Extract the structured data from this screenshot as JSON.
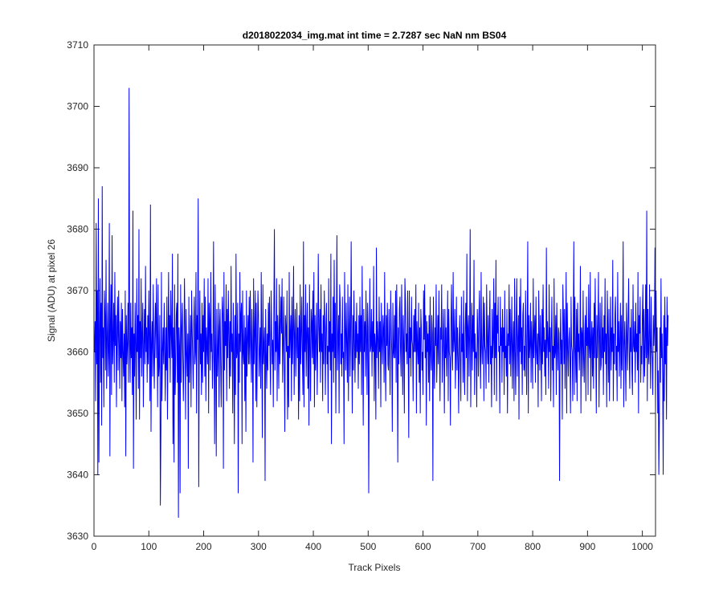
{
  "chart_data": {
    "type": "line",
    "title": "d2018022034_img.mat int time = 2.7287 sec  NaN nm BS04",
    "xlabel": "Track Pixels",
    "ylabel": "Signal (ADU) at pixel 26",
    "xlim": [
      0,
      1024
    ],
    "ylim": [
      3630,
      3710
    ],
    "x_ticks": [
      0,
      100,
      200,
      300,
      400,
      500,
      600,
      700,
      800,
      900,
      1000
    ],
    "y_ticks": [
      3630,
      3640,
      3650,
      3660,
      3670,
      3680,
      3690,
      3700,
      3710
    ],
    "x_tick_labels": [
      "0",
      "100",
      "200",
      "300",
      "400",
      "500",
      "600",
      "700",
      "800",
      "900",
      "1000"
    ],
    "y_tick_labels": [
      "3630",
      "3640",
      "3650",
      "3660",
      "3670",
      "3680",
      "3690",
      "3700",
      "3710"
    ],
    "grid": false,
    "box": true,
    "series": [
      {
        "color": "#0000ff",
        "x_start": 1,
        "x_step": 1,
        "values": [
          3660,
          3665,
          3652,
          3681,
          3658,
          3670,
          3640,
          3685,
          3642,
          3663,
          3672,
          3655,
          3668,
          3648,
          3687,
          3659,
          3664,
          3651,
          3670,
          3666,
          3657,
          3675,
          3654,
          3662,
          3668,
          3656,
          3660,
          3681,
          3643,
          3665,
          3671,
          3653,
          3679,
          3658,
          3662,
          3668,
          3655,
          3673,
          3661,
          3666,
          3651,
          3664,
          3669,
          3657,
          3670,
          3662,
          3654,
          3665,
          3659,
          3668,
          3652,
          3667,
          3660,
          3656,
          3663,
          3651,
          3670,
          3643,
          3666,
          3658,
          3661,
          3668,
          3655,
          3703,
          3662,
          3655,
          3668,
          3659,
          3664,
          3653,
          3683,
          3641,
          3663,
          3656,
          3668,
          3661,
          3649,
          3672,
          3660,
          3666,
          3654,
          3680,
          3649,
          3665,
          3659,
          3672,
          3656,
          3663,
          3668,
          3651,
          3661,
          3667,
          3658,
          3674,
          3660,
          3664,
          3655,
          3666,
          3658,
          3670,
          3662,
          3652,
          3684,
          3647,
          3661,
          3665,
          3656,
          3671,
          3660,
          3654,
          3663,
          3668,
          3659,
          3672,
          3664,
          3651,
          3671,
          3656,
          3658,
          3666,
          3635,
          3647,
          3673,
          3652,
          3660,
          3664,
          3658,
          3668,
          3660,
          3652,
          3664,
          3657,
          3669,
          3649,
          3661,
          3673,
          3659,
          3666,
          3655,
          3670,
          3663,
          3659,
          3676,
          3645,
          3664,
          3642,
          3671,
          3653,
          3658,
          3666,
          3668,
          3655,
          3676,
          3633,
          3664,
          3661,
          3637,
          3671,
          3655,
          3664,
          3668,
          3659,
          3652,
          3660,
          3672,
          3664,
          3649,
          3667,
          3660,
          3656,
          3663,
          3641,
          3669,
          3655,
          3660,
          3666,
          3651,
          3670,
          3664,
          3659,
          3654,
          3665,
          3669,
          3658,
          3660,
          3673,
          3650,
          3666,
          3662,
          3685,
          3638,
          3660,
          3670,
          3658,
          3663,
          3653,
          3668,
          3655,
          3666,
          3660,
          3672,
          3656,
          3669,
          3652,
          3664,
          3661,
          3658,
          3672,
          3650,
          3668,
          3665,
          3657,
          3673,
          3660,
          3663,
          3654,
          3660,
          3678,
          3659,
          3645,
          3671,
          3660,
          3643,
          3667,
          3656,
          3660,
          3668,
          3651,
          3664,
          3667,
          3658,
          3651,
          3663,
          3669,
          3666,
          3641,
          3673,
          3657,
          3665,
          3661,
          3671,
          3652,
          3667,
          3659,
          3670,
          3663,
          3654,
          3665,
          3656,
          3674,
          3660,
          3663,
          3650,
          3668,
          3660,
          3645,
          3666,
          3653,
          3676,
          3659,
          3660,
          3668,
          3637,
          3663,
          3655,
          3673,
          3660,
          3666,
          3668,
          3645,
          3670,
          3660,
          3658,
          3666,
          3652,
          3664,
          3647,
          3670,
          3656,
          3662,
          3666,
          3658,
          3669,
          3658,
          3670,
          3662,
          3655,
          3667,
          3661,
          3642,
          3672,
          3658,
          3663,
          3670,
          3652,
          3668,
          3651,
          3661,
          3670,
          3666,
          3656,
          3660,
          3664,
          3654,
          3673,
          3660,
          3646,
          3671,
          3658,
          3661,
          3664,
          3639,
          3667,
          3660,
          3654,
          3663,
          3657,
          3668,
          3661,
          3669,
          3659,
          3653,
          3670,
          3663,
          3658,
          3662,
          3651,
          3667,
          3680,
          3657,
          3665,
          3660,
          3672,
          3652,
          3666,
          3661,
          3654,
          3671,
          3658,
          3664,
          3669,
          3663,
          3672,
          3655,
          3661,
          3669,
          3658,
          3647,
          3666,
          3664,
          3660,
          3670,
          3649,
          3661,
          3651,
          3673,
          3659,
          3663,
          3666,
          3652,
          3669,
          3658,
          3664,
          3674,
          3653,
          3663,
          3667,
          3656,
          3661,
          3668,
          3659,
          3664,
          3649,
          3666,
          3652,
          3671,
          3658,
          3663,
          3669,
          3659,
          3653,
          3678,
          3651,
          3666,
          3660,
          3671,
          3656,
          3663,
          3668,
          3654,
          3664,
          3648,
          3671,
          3661,
          3652,
          3667,
          3665,
          3659,
          3670,
          3658,
          3673,
          3651,
          3666,
          3657,
          3662,
          3668,
          3653,
          3660,
          3676,
          3664,
          3660,
          3667,
          3655,
          3671,
          3660,
          3663,
          3652,
          3666,
          3658,
          3670,
          3664,
          3653,
          3664,
          3668,
          3658,
          3661,
          3650,
          3672,
          3660,
          3665,
          3657,
          3676,
          3645,
          3663,
          3660,
          3669,
          3655,
          3675,
          3659,
          3668,
          3650,
          3664,
          3679,
          3657,
          3662,
          3666,
          3650,
          3671,
          3668,
          3658,
          3663,
          3656,
          3669,
          3659,
          3660,
          3645,
          3673,
          3664,
          3657,
          3668,
          3661,
          3655,
          3671,
          3652,
          3664,
          3669,
          3656,
          3663,
          3678,
          3661,
          3650,
          3666,
          3657,
          3670,
          3662,
          3655,
          3665,
          3659,
          3668,
          3660,
          3663,
          3654,
          3666,
          3658,
          3669,
          3660,
          3666,
          3653,
          3674,
          3661,
          3648,
          3667,
          3660,
          3665,
          3656,
          3670,
          3663,
          3653,
          3668,
          3664,
          3637,
          3658,
          3672,
          3660,
          3661,
          3667,
          3656,
          3665,
          3660,
          3674,
          3652,
          3663,
          3661,
          3649,
          3677,
          3659,
          3665,
          3662,
          3654,
          3669,
          3660,
          3665,
          3651,
          3668,
          3662,
          3658,
          3666,
          3664,
          3655,
          3673,
          3660,
          3652,
          3666,
          3661,
          3668,
          3658,
          3657,
          3667,
          3661,
          3653,
          3670,
          3664,
          3660,
          3647,
          3668,
          3660,
          3659,
          3666,
          3659,
          3670,
          3655,
          3671,
          3661,
          3642,
          3664,
          3658,
          3667,
          3669,
          3660,
          3656,
          3671,
          3663,
          3653,
          3666,
          3661,
          3650,
          3672,
          3668,
          3660,
          3663,
          3658,
          3670,
          3660,
          3646,
          3670,
          3659,
          3664,
          3656,
          3669,
          3662,
          3661,
          3652,
          3666,
          3660,
          3667,
          3660,
          3671,
          3650,
          3665,
          3661,
          3658,
          3668,
          3655,
          3664,
          3650,
          3667,
          3664,
          3657,
          3660,
          3653,
          3670,
          3662,
          3671,
          3659,
          3666,
          3648,
          3665,
          3660,
          3663,
          3655,
          3666,
          3652,
          3669,
          3660,
          3657,
          3666,
          3663,
          3639,
          3669,
          3660,
          3654,
          3664,
          3661,
          3671,
          3655,
          3660,
          3666,
          3658,
          3670,
          3661,
          3652,
          3664,
          3662,
          3671,
          3655,
          3660,
          3667,
          3661,
          3650,
          3667,
          3659,
          3664,
          3656,
          3662,
          3670,
          3652,
          3667,
          3660,
          3659,
          3648,
          3665,
          3671,
          3660,
          3657,
          3673,
          3660,
          3662,
          3667,
          3654,
          3660,
          3669,
          3657,
          3664,
          3659,
          3650,
          3662,
          3666,
          3658,
          3652,
          3669,
          3660,
          3663,
          3655,
          3670,
          3658,
          3653,
          3664,
          3668,
          3659,
          3676,
          3652,
          3664,
          3666,
          3656,
          3663,
          3680,
          3651,
          3661,
          3668,
          3657,
          3666,
          3660,
          3675,
          3653,
          3663,
          3659,
          3660,
          3651,
          3667,
          3663,
          3656,
          3666,
          3670,
          3659,
          3654,
          3673,
          3661,
          3658,
          3663,
          3669,
          3652,
          3668,
          3661,
          3660,
          3654,
          3671,
          3662,
          3658,
          3666,
          3655,
          3664,
          3670,
          3658,
          3661,
          3651,
          3667,
          3659,
          3662,
          3672,
          3653,
          3668,
          3659,
          3675,
          3652,
          3666,
          3663,
          3669,
          3660,
          3661,
          3650,
          3669,
          3661,
          3664,
          3655,
          3667,
          3660,
          3664,
          3653,
          3670,
          3659,
          3661,
          3656,
          3667,
          3650,
          3663,
          3661,
          3671,
          3658,
          3667,
          3656,
          3662,
          3669,
          3654,
          3661,
          3665,
          3652,
          3672,
          3660,
          3653,
          3665,
          3672,
          3656,
          3662,
          3666,
          3649,
          3669,
          3660,
          3672,
          3658,
          3664,
          3653,
          3666,
          3668,
          3657,
          3661,
          3656,
          3670,
          3662,
          3653,
          3664,
          3678,
          3650,
          3666,
          3659,
          3661,
          3668,
          3655,
          3665,
          3661,
          3654,
          3672,
          3659,
          3663,
          3666,
          3655,
          3669,
          3660,
          3658,
          3663,
          3651,
          3670,
          3663,
          3657,
          3666,
          3661,
          3652,
          3667,
          3658,
          3671,
          3660,
          3664,
          3656,
          3662,
          3653,
          3677,
          3659,
          3665,
          3662,
          3654,
          3671,
          3660,
          3664,
          3652,
          3662,
          3669,
          3657,
          3661,
          3651,
          3672,
          3659,
          3660,
          3666,
          3653,
          3668,
          3661,
          3657,
          3664,
          3663,
          3639,
          3660,
          3667,
          3658,
          3662,
          3649,
          3671,
          3666,
          3658,
          3667,
          3654,
          3662,
          3673,
          3650,
          3668,
          3661,
          3656,
          3662,
          3664,
          3658,
          3650,
          3669,
          3661,
          3660,
          3652,
          3664,
          3678,
          3653,
          3669,
          3660,
          3655,
          3667,
          3652,
          3668,
          3660,
          3663,
          3657,
          3661,
          3674,
          3650,
          3664,
          3663,
          3656,
          3670,
          3659,
          3655,
          3663,
          3666,
          3652,
          3669,
          3661,
          3664,
          3653,
          3671,
          3661,
          3659,
          3673,
          3652,
          3662,
          3665,
          3656,
          3664,
          3654,
          3668,
          3659,
          3672,
          3661,
          3650,
          3666,
          3659,
          3664,
          3673,
          3651,
          3662,
          3668,
          3657,
          3658,
          3669,
          3659,
          3664,
          3653,
          3666,
          3660,
          3672,
          3658,
          3663,
          3651,
          3670,
          3664,
          3655,
          3667,
          3652,
          3661,
          3669,
          3657,
          3664,
          3660,
          3675,
          3652,
          3663,
          3658,
          3666,
          3669,
          3657,
          3661,
          3652,
          3673,
          3660,
          3665,
          3656,
          3662,
          3668,
          3654,
          3666,
          3657,
          3663,
          3678,
          3651,
          3661,
          3665,
          3659,
          3652,
          3668,
          3663,
          3657,
          3665,
          3672,
          3660,
          3654,
          3664,
          3660,
          3667,
          3657,
          3653,
          3671,
          3661,
          3660,
          3665,
          3655,
          3668,
          3660,
          3663,
          3657,
          3673,
          3650,
          3666,
          3663,
          3669,
          3655,
          3661,
          3658,
          3666,
          3671,
          3655,
          3667,
          3656,
          3660,
          3671,
          3659,
          3683,
          3652,
          3667,
          3660,
          3658,
          3671,
          3662,
          3654,
          3669,
          3661,
          3659,
          3653,
          3666,
          3661,
          3664,
          3677,
          3650,
          3670,
          3660,
          3664,
          3650,
          3657,
          3640,
          3649,
          3664,
          3655,
          3672,
          3659,
          3663,
          3656,
          3640,
          3666,
          3652,
          3669,
          3658,
          3664,
          3649,
          3669,
          3661,
          3666
        ]
      }
    ]
  }
}
